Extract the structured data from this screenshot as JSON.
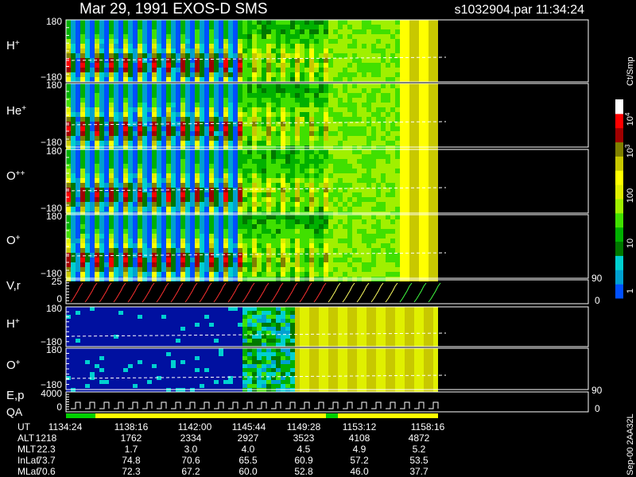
{
  "header": {
    "title": "Mar 29, 1991   EXOS-D SMS",
    "file": "s1032904.par  11:34:24"
  },
  "panels": [
    {
      "label": "H",
      "sup": "+",
      "top": "180",
      "bottom": "−180"
    },
    {
      "label": "He",
      "sup": "+",
      "top": "180",
      "bottom": "−180"
    },
    {
      "label": "O",
      "sup": "++",
      "top": "180",
      "bottom": "−180"
    },
    {
      "label": "O",
      "sup": "+",
      "top": "180",
      "bottom": "−180"
    },
    {
      "label": "V,r",
      "top": "25",
      "bottom": "0",
      "right_top": "90",
      "right_bottom": "0"
    },
    {
      "label": "H",
      "sup": "+",
      "top": "180",
      "bottom": "−180"
    },
    {
      "label": "O",
      "sup": "+",
      "top": "180",
      "bottom": "−180"
    },
    {
      "label": "E,p",
      "label2": "QA",
      "top": "4000",
      "bottom": "0",
      "right_top": "90",
      "right_bottom": "0"
    }
  ],
  "colorbar": {
    "unit": "Ct/Smp",
    "labels": [
      {
        "base": "10",
        "sup": "4"
      },
      {
        "base": "10",
        "sup": "3"
      },
      {
        "base": "100"
      },
      {
        "base": "10"
      },
      {
        "base": "1"
      }
    ]
  },
  "table": {
    "rows": [
      {
        "name": "UT",
        "values": [
          "1134:24",
          "1138:16",
          "1142:00",
          "1145:44",
          "1149:28",
          "1153:12",
          "1158:16"
        ]
      },
      {
        "name": "ALT",
        "values": [
          "1218",
          "1762",
          "2334",
          "2927",
          "3523",
          "4108",
          "4872"
        ]
      },
      {
        "name": "MLT",
        "values": [
          "22.3",
          "1.7",
          "3.0",
          "4.0",
          "4.5",
          "4.9",
          "5.2"
        ]
      },
      {
        "name": "InLat",
        "values": [
          "73.7",
          "74.8",
          "70.6",
          "65.5",
          "60.9",
          "57.2",
          "53.5"
        ]
      },
      {
        "name": "MLat",
        "values": [
          "70.6",
          "72.3",
          "67.2",
          "60.0",
          "52.8",
          "46.0",
          "37.7"
        ]
      }
    ]
  },
  "footer": "Sep-00  2AA32L"
}
